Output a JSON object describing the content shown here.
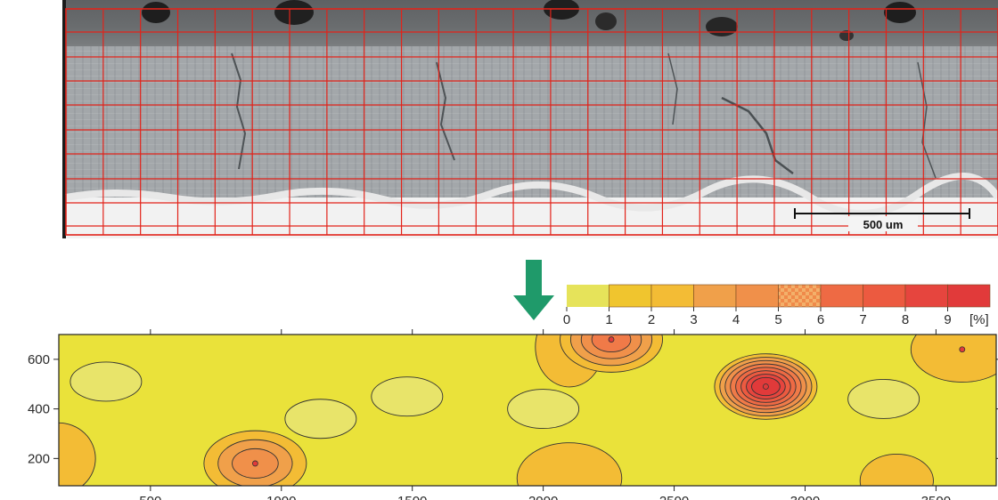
{
  "micrograph": {
    "scale_bar_label": "500 um",
    "grid_color": "#e2231a"
  },
  "colorbar": {
    "unit_label": "[%]",
    "ticks": [
      "0",
      "1",
      "2",
      "3",
      "4",
      "5",
      "6",
      "7",
      "8",
      "9"
    ],
    "colors": [
      "#e6e35a",
      "#f0c52e",
      "#f3bc35",
      "#f0a04a",
      "#f0904a",
      "#f07a48",
      "#ee6a44",
      "#ec5a40",
      "#e6453e",
      "#e13a3a"
    ],
    "patterned_index": 5
  },
  "chart_data": {
    "type": "heatmap",
    "title": "",
    "xlabel": "",
    "ylabel": "",
    "x_ticks": [
      500,
      1000,
      1500,
      2000,
      2500,
      3000,
      3500
    ],
    "y_ticks": [
      200,
      400,
      600
    ],
    "xlim": [
      150,
      3730
    ],
    "ylim": [
      90,
      700
    ],
    "value_unit": "[%]",
    "background_level": 1,
    "hotspots": [
      {
        "x": 2850,
        "y": 490,
        "peak": 9
      },
      {
        "x": 2260,
        "y": 680,
        "peak": 5
      },
      {
        "x": 900,
        "y": 180,
        "peak": 4
      },
      {
        "x": 3600,
        "y": 640,
        "peak": 2
      }
    ],
    "lows": [
      {
        "x": 330,
        "y": 510,
        "value": 0
      },
      {
        "x": 1480,
        "y": 450,
        "value": 0
      },
      {
        "x": 1150,
        "y": 360,
        "value": 0
      },
      {
        "x": 2000,
        "y": 400,
        "value": 0
      },
      {
        "x": 3300,
        "y": 440,
        "value": 0
      }
    ]
  }
}
